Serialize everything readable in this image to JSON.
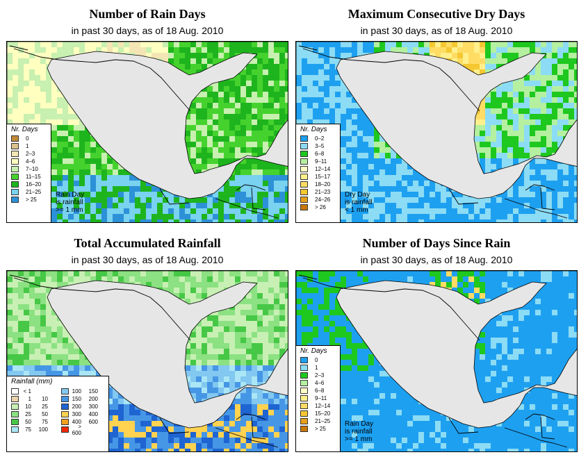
{
  "panels": [
    {
      "id": "rain-days",
      "title": "Number of Rain Days",
      "subtitle": "in past 30 days, as of  18 Aug. 2010",
      "legend_title": "Nr. Days",
      "legend": [
        {
          "label": "0",
          "color": "#c08a3a"
        },
        {
          "label": "1",
          "color": "#dcc28e"
        },
        {
          "label": "2–3",
          "color": "#f4e6b4"
        },
        {
          "label": "4–6",
          "color": "#ffffc0"
        },
        {
          "label": "7–10",
          "color": "#c8f0b0"
        },
        {
          "label": "11–15",
          "color": "#46d22e"
        },
        {
          "label": "16–20",
          "color": "#1eb41e"
        },
        {
          "label": "21–25",
          "color": "#78d2f0"
        },
        {
          "label": "> 25",
          "color": "#2d91d7"
        }
      ],
      "note": [
        "Rain Day",
        "is rainfall",
        ">= 1 mm"
      ]
    },
    {
      "id": "dry-days",
      "title": "Maximum Consecutive Dry Days",
      "subtitle": "in past 30 days, as of  18 Aug. 2010",
      "legend_title": "Nr. Days",
      "legend": [
        {
          "label": "0–2",
          "color": "#1ea0f0"
        },
        {
          "label": "3–5",
          "color": "#8cdcf5"
        },
        {
          "label": "6–8",
          "color": "#1ec81e"
        },
        {
          "label": "9–11",
          "color": "#b4f0a0"
        },
        {
          "label": "12–14",
          "color": "#ffffc8"
        },
        {
          "label": "15–17",
          "color": "#fff08c"
        },
        {
          "label": "18–20",
          "color": "#ffdc64"
        },
        {
          "label": "21–23",
          "color": "#f5c832"
        },
        {
          "label": "24–26",
          "color": "#e6a01e"
        },
        {
          "label": "> 26",
          "color": "#c8780a"
        }
      ],
      "note": [
        "Dry Day",
        "is rainfall",
        "< 1 mm"
      ]
    },
    {
      "id": "rainfall",
      "title": "Total Accumulated Rainfall",
      "subtitle": "in past 30 days, as of  18 Aug. 2010",
      "legend_title": "Rainfall (mm)",
      "legend_left": [
        {
          "lo": "< 1",
          "hi": "",
          "color": "#ffffff"
        },
        {
          "lo": "1",
          "hi": "10",
          "color": "#ebd2aa"
        },
        {
          "lo": "10",
          "hi": "25",
          "color": "#c8f0b4"
        },
        {
          "lo": "25",
          "hi": "50",
          "color": "#8ce182"
        },
        {
          "lo": "50",
          "hi": "75",
          "color": "#46c846"
        },
        {
          "lo": "75",
          "hi": "100",
          "color": "#aae6f5"
        }
      ],
      "legend_right": [
        {
          "lo": "100",
          "hi": "150",
          "color": "#82c8f0"
        },
        {
          "lo": "150",
          "hi": "200",
          "color": "#4696e6"
        },
        {
          "lo": "200",
          "hi": "300",
          "color": "#1e64d2"
        },
        {
          "lo": "300",
          "hi": "400",
          "color": "#ffd250"
        },
        {
          "lo": "400",
          "hi": "600",
          "color": "#f5a01e"
        },
        {
          "lo": "> 600",
          "hi": "",
          "color": "#f02800"
        }
      ]
    },
    {
      "id": "since-rain",
      "title": "Number of Days Since Rain",
      "subtitle": "in past 30 days, as of  18 Aug. 2010",
      "legend_title": "Nr. Days",
      "legend": [
        {
          "label": "0",
          "color": "#1ea0f0"
        },
        {
          "label": "1",
          "color": "#8cdcf5"
        },
        {
          "label": "2–3",
          "color": "#1ec81e"
        },
        {
          "label": "4–6",
          "color": "#b4f0a0"
        },
        {
          "label": "6–8",
          "color": "#ffffc8"
        },
        {
          "label": "9–11",
          "color": "#fff08c"
        },
        {
          "label": "12–14",
          "color": "#ffdc64"
        },
        {
          "label": "15–20",
          "color": "#f5c832"
        },
        {
          "label": "21–25",
          "color": "#e6a01e"
        },
        {
          "label": "> 25",
          "color": "#c8780a"
        }
      ],
      "note": [
        "Rain Day",
        "is rainfall",
        ">= 1 mm"
      ]
    }
  ]
}
